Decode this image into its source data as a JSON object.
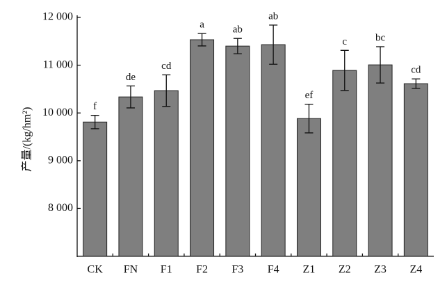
{
  "chart_data": {
    "type": "bar",
    "ylabel": "产量/(kg/hm²)",
    "categories": [
      "CK",
      "FN",
      "F1",
      "F2",
      "F3",
      "F4",
      "Z1",
      "Z2",
      "Z3",
      "Z4"
    ],
    "values": [
      9810,
      10336,
      10467,
      11533,
      11400,
      11430,
      9883,
      10890,
      11007,
      10613
    ],
    "errors": [
      140,
      230,
      330,
      130,
      160,
      410,
      300,
      420,
      380,
      100
    ],
    "letters": [
      "f",
      "de",
      "cd",
      "a",
      "ab",
      "ab",
      "ef",
      "c",
      "bc",
      "cd"
    ],
    "color": "#7f7f7f",
    "ylim": [
      7000,
      12000
    ],
    "yticks": [
      {
        "value": 8000,
        "label": "8 000"
      },
      {
        "value": 9000,
        "label": "9 000"
      },
      {
        "value": 10000,
        "label": "10 000"
      },
      {
        "value": 11000,
        "label": "11 000"
      },
      {
        "value": 12000,
        "label": "12 000"
      }
    ],
    "grid": false
  }
}
